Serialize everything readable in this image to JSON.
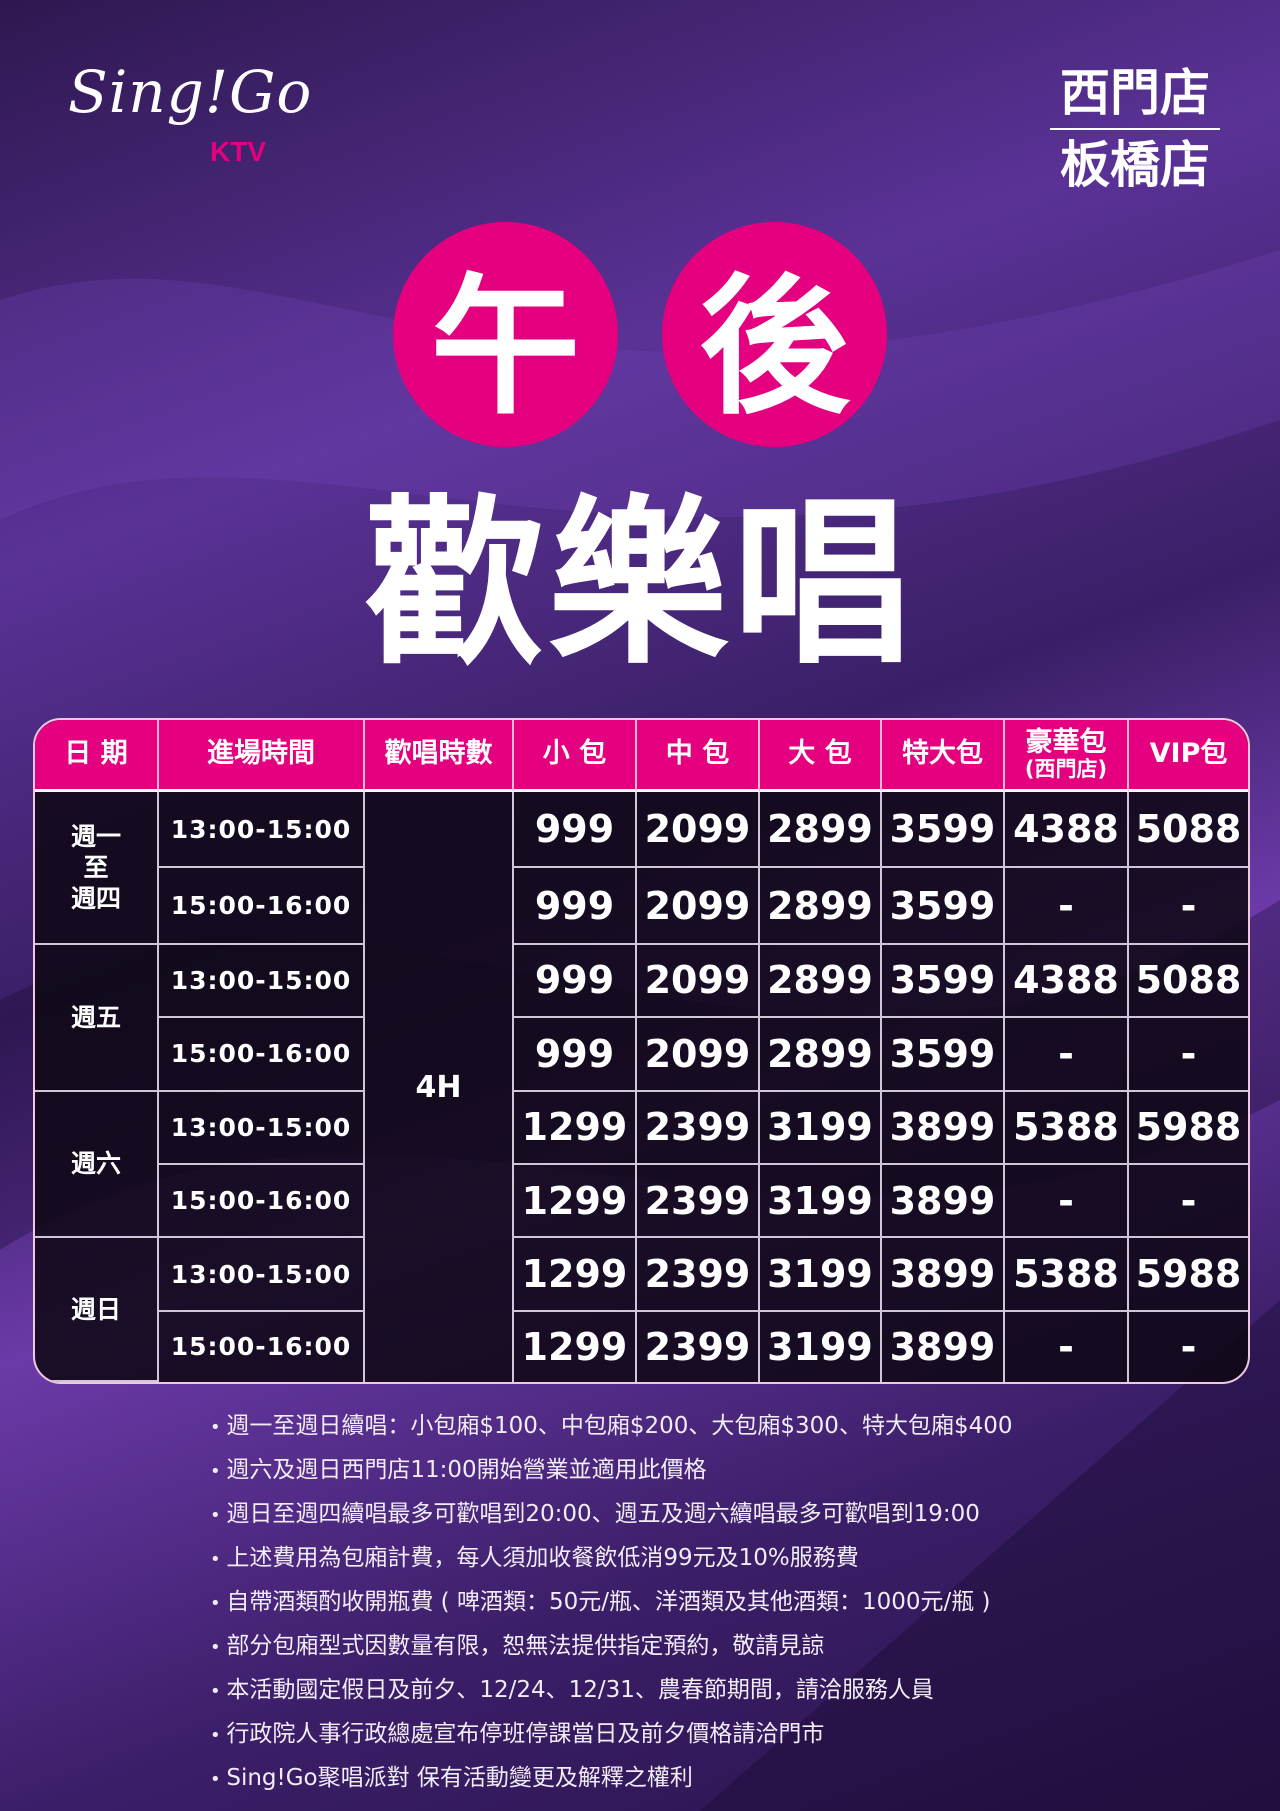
{
  "brand": {
    "logo_text": "Sing!Go",
    "logo_sub": "KTV",
    "accent": "#e4007f"
  },
  "stores": [
    "西門店",
    "板橋店"
  ],
  "headline": {
    "circle1": "午",
    "circle2": "後",
    "main": "歡樂唱"
  },
  "table": {
    "headers": [
      "日 期",
      "進場時間",
      "歡唱時數",
      "小 包",
      "中 包",
      "大 包",
      "特大包",
      "豪華包",
      "(西門店)",
      "VIP包"
    ],
    "hours": "4H",
    "groups": [
      {
        "day": "週一\n至\n週四",
        "rows": [
          {
            "time": "13:00-15:00",
            "prices": [
              "999",
              "2099",
              "2899",
              "3599",
              "4388",
              "5088"
            ]
          },
          {
            "time": "15:00-16:00",
            "prices": [
              "999",
              "2099",
              "2899",
              "3599",
              "-",
              "-"
            ]
          }
        ]
      },
      {
        "day": "週五",
        "rows": [
          {
            "time": "13:00-15:00",
            "prices": [
              "999",
              "2099",
              "2899",
              "3599",
              "4388",
              "5088"
            ]
          },
          {
            "time": "15:00-16:00",
            "prices": [
              "999",
              "2099",
              "2899",
              "3599",
              "-",
              "-"
            ]
          }
        ]
      },
      {
        "day": "週六",
        "rows": [
          {
            "time": "13:00-15:00",
            "prices": [
              "1299",
              "2399",
              "3199",
              "3899",
              "5388",
              "5988"
            ]
          },
          {
            "time": "15:00-16:00",
            "prices": [
              "1299",
              "2399",
              "3199",
              "3899",
              "-",
              "-"
            ]
          }
        ]
      },
      {
        "day": "週日",
        "rows": [
          {
            "time": "13:00-15:00",
            "prices": [
              "1299",
              "2399",
              "3199",
              "3899",
              "5388",
              "5988"
            ]
          },
          {
            "time": "15:00-16:00",
            "prices": [
              "1299",
              "2399",
              "3199",
              "3899",
              "-",
              "-"
            ]
          }
        ]
      }
    ]
  },
  "notes": [
    "週一至週日續唱：小包廂$100、中包廂$200、大包廂$300、特大包廂$400",
    "週六及週日西門店11:00開始營業並適用此價格",
    "週日至週四續唱最多可歡唱到20:00、週五及週六續唱最多可歡唱到19:00",
    "上述費用為包廂計費，每人須加收餐飲低消99元及10%服務費",
    "自帶酒類酌收開瓶費 ( 啤酒類：50元/瓶、洋酒類及其他酒類：1000元/瓶 )",
    "部分包廂型式因數量有限，恕無法提供指定預約，敬請見諒",
    "本活動國定假日及前夕、12/24、12/31、農春節期間，請洽服務人員",
    "行政院人事行政總處宣布停班停課當日及前夕價格請洽門市",
    "Sing!Go聚唱派對 保有活動變更及解釋之權利"
  ]
}
